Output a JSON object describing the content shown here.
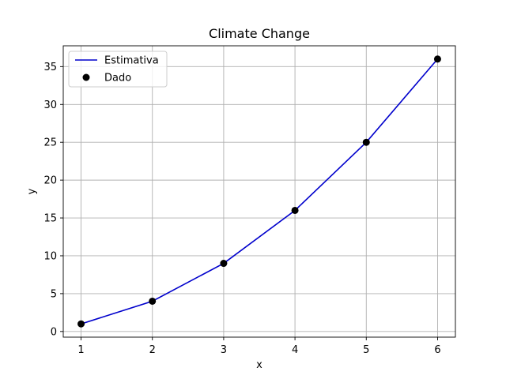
{
  "chart_data": {
    "type": "line",
    "title": "Climate Change",
    "xlabel": "x",
    "ylabel": "y",
    "xlim": [
      0.75,
      6.25
    ],
    "ylim": [
      -0.75,
      37.75
    ],
    "x_ticks": [
      1,
      2,
      3,
      4,
      5,
      6
    ],
    "y_ticks": [
      0,
      5,
      10,
      15,
      20,
      25,
      30,
      35
    ],
    "grid": true,
    "legend_position": "top-left",
    "series": [
      {
        "name": "Estimativa",
        "kind": "line",
        "color": "#0000cc",
        "x": [
          1,
          2,
          3,
          4,
          5,
          6
        ],
        "y": [
          1,
          4,
          9,
          16,
          25,
          36
        ]
      },
      {
        "name": "Dado",
        "kind": "scatter",
        "color": "#000000",
        "x": [
          1,
          2,
          3,
          4,
          5,
          6
        ],
        "y": [
          1,
          4,
          9,
          16,
          25,
          36
        ]
      }
    ]
  }
}
